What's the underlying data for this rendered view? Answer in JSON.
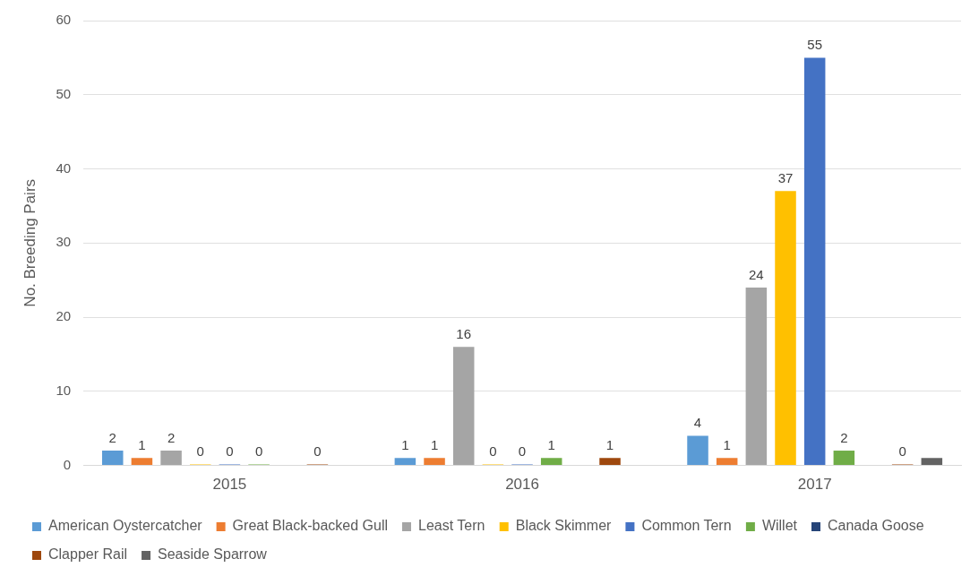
{
  "chart_data": {
    "type": "bar",
    "ylabel": "No. Breeding Pairs",
    "categories": [
      "2015",
      "2016",
      "2017"
    ],
    "ylim": [
      0,
      60
    ],
    "yticks": [
      0,
      10,
      20,
      30,
      40,
      50,
      60
    ],
    "grid": "y",
    "legend": "bottom",
    "series": [
      {
        "name": "American Oystercatcher",
        "color": "#5b9bd5",
        "values": [
          2,
          1,
          4
        ],
        "value_labels": [
          "2",
          "1",
          "4"
        ]
      },
      {
        "name": "Great Black-backed Gull",
        "color": "#ed7d31",
        "values": [
          1,
          1,
          1
        ],
        "value_labels": [
          "1",
          "1",
          "1"
        ]
      },
      {
        "name": "Least Tern",
        "color": "#a5a5a5",
        "values": [
          2,
          16,
          24
        ],
        "value_labels": [
          "2",
          "16",
          "24"
        ]
      },
      {
        "name": "Black Skimmer",
        "color": "#ffc000",
        "values": [
          0,
          0,
          37
        ],
        "value_labels": [
          "0",
          "0",
          "37"
        ]
      },
      {
        "name": "Common Tern",
        "color": "#4472c4",
        "values": [
          0,
          0,
          55
        ],
        "value_labels": [
          "0",
          "0",
          "55"
        ]
      },
      {
        "name": "Willet",
        "color": "#70ad47",
        "values": [
          0,
          1,
          2
        ],
        "value_labels": [
          "0",
          "1",
          "2"
        ]
      },
      {
        "name": "Canada Goose",
        "color": "#264478",
        "values": [
          null,
          null,
          null
        ],
        "value_labels": [
          null,
          null,
          null
        ]
      },
      {
        "name": "Clapper Rail",
        "color": "#9e480e",
        "values": [
          0,
          1,
          0
        ],
        "value_labels": [
          "0",
          "1",
          "0"
        ]
      },
      {
        "name": "Seaside Sparrow",
        "color": "#636363",
        "values": [
          null,
          null,
          1
        ],
        "value_labels": [
          null,
          null,
          null
        ]
      }
    ]
  }
}
